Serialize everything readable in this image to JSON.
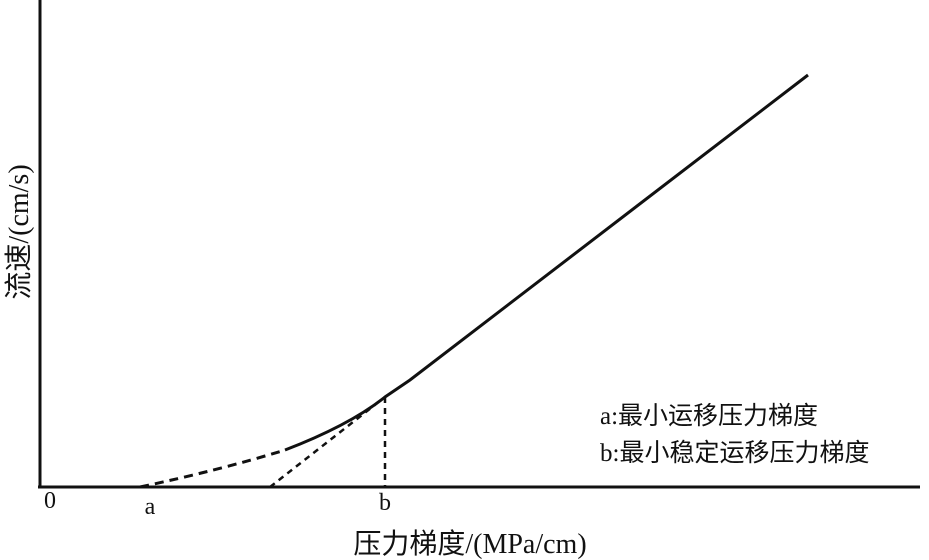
{
  "axes": {
    "x_label": "压力梯度/(MPa/cm)",
    "y_label": "流速/(cm/s)",
    "origin": "0",
    "tick_a": "a",
    "tick_b": "b"
  },
  "legend": [
    "a:最小运移压力梯度",
    "b:最小稳定运移压力梯度"
  ]
}
